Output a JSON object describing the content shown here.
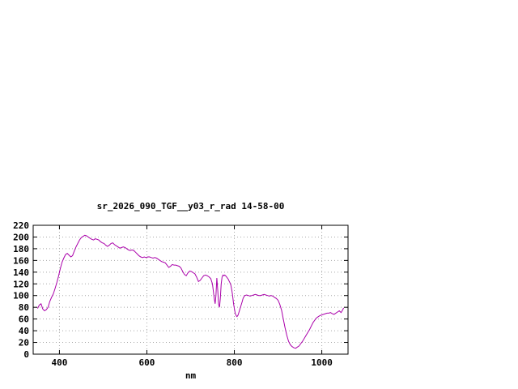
{
  "chart": {
    "title": "sr_2026_090_TGF__y03_r_rad 14-58-00",
    "xlabel": "nm"
  },
  "chart_data": {
    "type": "line",
    "title": "sr_2026_090_TGF__y03_r_rad 14-58-00",
    "xlabel": "nm",
    "ylabel": "",
    "xlim": [
      340,
      1060
    ],
    "ylim": [
      0,
      220
    ],
    "xticks": [
      400,
      600,
      800,
      1000
    ],
    "yticks": [
      0,
      20,
      40,
      60,
      80,
      100,
      120,
      140,
      160,
      180,
      200,
      220
    ],
    "grid": true,
    "legend": "none",
    "colors": {
      "line": "#aa00aa",
      "grid": "#a8a8a8",
      "border": "#000000",
      "background": "#ffffff"
    },
    "series": [
      {
        "name": "sr_2026_090_TGF__y03_r_rad",
        "x": [
          350,
          354,
          358,
          362,
          366,
          370,
          374,
          378,
          382,
          386,
          390,
          394,
          398,
          402,
          406,
          410,
          414,
          418,
          422,
          426,
          430,
          434,
          438,
          442,
          446,
          450,
          454,
          458,
          462,
          466,
          470,
          474,
          478,
          482,
          486,
          490,
          494,
          498,
          502,
          506,
          510,
          514,
          518,
          522,
          526,
          530,
          534,
          538,
          542,
          546,
          550,
          554,
          558,
          562,
          566,
          570,
          574,
          578,
          582,
          586,
          590,
          594,
          598,
          602,
          606,
          610,
          614,
          618,
          622,
          626,
          630,
          634,
          638,
          642,
          646,
          650,
          654,
          658,
          662,
          666,
          670,
          674,
          678,
          682,
          686,
          690,
          694,
          698,
          702,
          706,
          710,
          714,
          718,
          722,
          726,
          730,
          734,
          738,
          742,
          746,
          750,
          754,
          756,
          758,
          760,
          762,
          764,
          766,
          768,
          770,
          772,
          774,
          776,
          778,
          780,
          782,
          784,
          786,
          788,
          790,
          792,
          794,
          796,
          798,
          800,
          802,
          804,
          806,
          808,
          810,
          812,
          814,
          816,
          818,
          820,
          822,
          824,
          828,
          832,
          836,
          840,
          844,
          848,
          852,
          856,
          860,
          864,
          868,
          872,
          876,
          880,
          884,
          888,
          892,
          896,
          900,
          904,
          908,
          912,
          916,
          920,
          924,
          928,
          932,
          936,
          940,
          944,
          948,
          952,
          956,
          960,
          964,
          968,
          972,
          976,
          980,
          984,
          988,
          992,
          996,
          1000,
          1004,
          1008,
          1012,
          1016,
          1020,
          1024,
          1028,
          1032,
          1036,
          1040,
          1044,
          1048,
          1050
        ],
        "y": [
          78,
          84,
          86,
          77,
          74,
          76,
          80,
          90,
          97,
          103,
          112,
          122,
          133,
          146,
          157,
          164,
          170,
          172,
          169,
          166,
          168,
          176,
          183,
          189,
          195,
          199,
          201,
          203,
          202,
          200,
          198,
          196,
          195,
          197,
          196,
          195,
          192,
          190,
          189,
          186,
          184,
          186,
          189,
          190,
          187,
          185,
          183,
          181,
          182,
          183,
          182,
          180,
          178,
          177,
          178,
          177,
          174,
          171,
          168,
          166,
          165,
          166,
          165,
          166,
          166,
          165,
          164,
          165,
          164,
          162,
          160,
          158,
          157,
          156,
          152,
          148,
          150,
          153,
          152,
          152,
          151,
          150,
          147,
          141,
          136,
          134,
          139,
          142,
          141,
          139,
          137,
          131,
          124,
          126,
          130,
          134,
          135,
          134,
          132,
          129,
          120,
          95,
          86,
          100,
          130,
          110,
          85,
          80,
          95,
          120,
          132,
          135,
          134,
          135,
          134,
          132,
          130,
          128,
          125,
          122,
          118,
          110,
          100,
          88,
          78,
          70,
          66,
          64,
          66,
          70,
          75,
          80,
          85,
          90,
          95,
          98,
          100,
          101,
          100,
          99,
          100,
          101,
          102,
          101,
          100,
          100,
          101,
          102,
          101,
          100,
          99,
          100,
          99,
          97,
          95,
          92,
          85,
          75,
          60,
          45,
          32,
          22,
          16,
          13,
          11,
          10,
          12,
          14,
          18,
          22,
          27,
          32,
          37,
          42,
          48,
          54,
          58,
          62,
          64,
          66,
          67,
          68,
          69,
          70,
          70,
          71,
          69,
          68,
          70,
          72,
          74,
          71,
          76,
          79
        ]
      }
    ]
  }
}
